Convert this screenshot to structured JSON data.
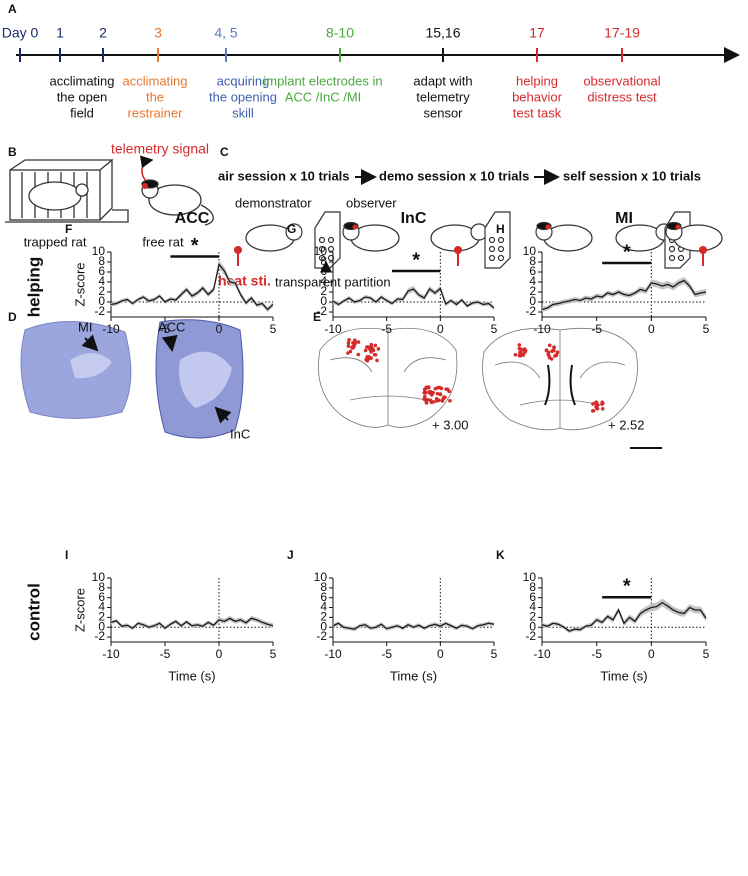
{
  "timeline": {
    "label": "A",
    "events": [
      {
        "day": "Day 0",
        "color": "#1b2a6b"
      },
      {
        "day": "1",
        "color": "#1b2a6b"
      },
      {
        "day": "2",
        "color": "#1b2a6b"
      },
      {
        "day": "3",
        "color": "#e8762c"
      },
      {
        "day": "4, 5",
        "color": "#5a7bbf"
      },
      {
        "day": "8-10",
        "color": "#4aa83f"
      },
      {
        "day": "15,16",
        "color": "#111111"
      },
      {
        "day": "17",
        "color": "#d42a2a"
      },
      {
        "day": "17-19",
        "color": "#d42a2a"
      }
    ],
    "captions": [
      {
        "lines": [
          "acclimating",
          "the open",
          "field"
        ],
        "color": "#111111"
      },
      {
        "lines": [
          "acclimating",
          "the",
          "restrainer"
        ],
        "color": "#e8762c"
      },
      {
        "lines": [
          "acquiring",
          "the opening",
          "skill"
        ],
        "color": "#3d5fb0"
      },
      {
        "lines": [
          "implant  electrodes in",
          "ACC /InC /MI"
        ],
        "color": "#4aa83f"
      },
      {
        "lines": [
          "adapt with",
          "telemetry",
          "sensor"
        ],
        "color": "#111111"
      },
      {
        "lines": [
          "helping",
          "behavior",
          "test task"
        ],
        "color": "#d42a2a"
      },
      {
        "lines": [
          "observational",
          "distress test"
        ],
        "color": "#d42a2a"
      }
    ]
  },
  "panel_b": {
    "label": "B",
    "signal": "telemetry signal",
    "trapped": "trapped rat",
    "free": "free rat"
  },
  "panel_c": {
    "label": "C",
    "sessions": [
      "air session x 10 trials",
      "demo session x 10 trials",
      "self session x 10 trials"
    ],
    "demonstrator": "demonstrator",
    "observer": "observer",
    "stimulus": "heat sti.",
    "partition": "transparent partition"
  },
  "panel_d": {
    "label": "D",
    "regions": [
      "MI",
      "ACC",
      "InC"
    ]
  },
  "panel_e": {
    "label": "E",
    "sections": [
      "+ 3.00",
      "+ 2.52"
    ]
  },
  "row_labels": [
    "helping",
    "control"
  ],
  "chart_data": [
    {
      "type": "line",
      "panel": "F",
      "title": "ACC",
      "ylabel": "Z-score",
      "x": [
        -10,
        -9.5,
        -9,
        -8.5,
        -8,
        -7.5,
        -7,
        -6.5,
        -6,
        -5.5,
        -5,
        -4.5,
        -4,
        -3.5,
        -3,
        -2.5,
        -2,
        -1.5,
        -1,
        -0.5,
        0,
        0.5,
        1,
        1.5,
        2,
        2.5,
        3,
        3.5,
        4,
        4.5,
        5
      ],
      "series": [
        {
          "color": "#1a1a1a",
          "band_color": "#c4c4c4",
          "values": [
            -0.5,
            -0.3,
            0.2,
            0.5,
            -0.3,
            0.5,
            1,
            0.2,
            0.5,
            1.2,
            0,
            0.6,
            0.4,
            1.5,
            2.5,
            1.2,
            1.8,
            2.8,
            1.5,
            2.5,
            7.5,
            6.2,
            4,
            3.8,
            1.5,
            -0.2,
            0.8,
            -0.6,
            -0.3,
            -1.5,
            -0.5
          ],
          "error": [
            0.4,
            0.4,
            0.4,
            0.4,
            0.4,
            0.4,
            0.4,
            0.4,
            0.4,
            0.4,
            0.4,
            0.4,
            0.4,
            0.5,
            0.5,
            0.5,
            0.5,
            0.5,
            0.5,
            0.5,
            0.8,
            0.8,
            0.6,
            0.6,
            0.5,
            0.5,
            0.5,
            0.5,
            0.5,
            0.5,
            0.5
          ]
        }
      ],
      "xlim": [
        -10,
        5
      ],
      "ylim": [
        -3,
        10
      ],
      "xticks": [
        -10,
        -5,
        0,
        5
      ],
      "yticks": [
        -2,
        0,
        2,
        4,
        6,
        8,
        10
      ],
      "ref_lines": {
        "x": 0,
        "y": 0
      },
      "significance": {
        "range": [
          -4.5,
          0
        ],
        "y": 9.1,
        "label": "*"
      }
    },
    {
      "type": "line",
      "panel": "G",
      "title": "InC",
      "x": [
        -10,
        -9.5,
        -9,
        -8.5,
        -8,
        -7.5,
        -7,
        -6.5,
        -6,
        -5.5,
        -5,
        -4.5,
        -4,
        -3.5,
        -3,
        -2.5,
        -2,
        -1.5,
        -1,
        -0.5,
        0,
        0.5,
        1,
        1.5,
        2,
        2.5,
        3,
        3.5,
        4,
        4.5,
        5
      ],
      "series": [
        {
          "color": "#1a1a1a",
          "band_color": "#c4c4c4",
          "values": [
            0.2,
            -0.5,
            0.2,
            0.8,
            0,
            0.3,
            1,
            0.8,
            0,
            1,
            0.3,
            -0.3,
            0.6,
            0.5,
            2.2,
            2.6,
            1.4,
            0.8,
            2.6,
            1.8,
            2.7,
            -0.4,
            0.3,
            -0.5,
            0.4,
            -0.8,
            -0.2,
            0,
            -0.5,
            -0.3,
            -1.2
          ],
          "error": [
            0.4,
            0.4,
            0.4,
            0.4,
            0.4,
            0.4,
            0.4,
            0.4,
            0.4,
            0.4,
            0.4,
            0.4,
            0.4,
            0.5,
            0.6,
            0.6,
            0.5,
            0.5,
            0.6,
            0.5,
            0.6,
            0.5,
            0.4,
            0.4,
            0.4,
            0.4,
            0.4,
            0.4,
            0.4,
            0.4,
            0.4
          ]
        }
      ],
      "xlim": [
        -10,
        5
      ],
      "ylim": [
        -3,
        10
      ],
      "xticks": [
        -10,
        -5,
        0,
        5
      ],
      "yticks": [
        -2,
        0,
        2,
        4,
        6,
        8,
        10
      ],
      "ref_lines": {
        "x": 0,
        "y": 0
      },
      "significance": {
        "range": [
          -4.5,
          0
        ],
        "y": 6.2,
        "label": "*"
      }
    },
    {
      "type": "line",
      "panel": "H",
      "title": "MI",
      "x": [
        -10,
        -9.5,
        -9,
        -8.5,
        -8,
        -7.5,
        -7,
        -6.5,
        -6,
        -5.5,
        -5,
        -4.5,
        -4,
        -3.5,
        -3,
        -2.5,
        -2,
        -1.5,
        -1,
        -0.5,
        0,
        0.5,
        1,
        1.5,
        2,
        2.5,
        3,
        3.5,
        4,
        4.5,
        5
      ],
      "series": [
        {
          "color": "#1a1a1a",
          "band_color": "#c4c4c4",
          "values": [
            -1.5,
            -1.2,
            -0.5,
            -0.3,
            0,
            0.2,
            0.5,
            0.3,
            0.8,
            0.6,
            1.2,
            1,
            1.8,
            1.5,
            2,
            1.5,
            1.3,
            1.8,
            2.5,
            2.2,
            3.8,
            3.6,
            3.2,
            3.5,
            3,
            3.8,
            4.3,
            3.2,
            1.5,
            1.8,
            2
          ],
          "error": [
            0.5,
            0.5,
            0.5,
            0.5,
            0.5,
            0.5,
            0.5,
            0.5,
            0.5,
            0.5,
            0.5,
            0.5,
            0.5,
            0.5,
            0.5,
            0.5,
            0.5,
            0.5,
            0.6,
            0.6,
            0.7,
            0.7,
            0.7,
            0.7,
            0.7,
            0.7,
            0.7,
            0.7,
            0.6,
            0.6,
            0.6
          ]
        }
      ],
      "xlim": [
        -10,
        5
      ],
      "ylim": [
        -3,
        10
      ],
      "xticks": [
        -10,
        -5,
        0,
        5
      ],
      "yticks": [
        -2,
        0,
        2,
        4,
        6,
        8,
        10
      ],
      "ref_lines": {
        "x": 0,
        "y": 0
      },
      "significance": {
        "range": [
          -4.5,
          0
        ],
        "y": 7.8,
        "label": "*"
      }
    },
    {
      "type": "line",
      "panel": "I",
      "ylabel": "Z-score",
      "xlabel": "Time (s)",
      "x": [
        -10,
        -9.5,
        -9,
        -8.5,
        -8,
        -7.5,
        -7,
        -6.5,
        -6,
        -5.5,
        -5,
        -4.5,
        -4,
        -3.5,
        -3,
        -2.5,
        -2,
        -1.5,
        -1,
        -0.5,
        0,
        0.5,
        1,
        1.5,
        2,
        2.5,
        3,
        3.5,
        4,
        4.5,
        5
      ],
      "series": [
        {
          "color": "#1a1a1a",
          "band_color": "#c4c4c4",
          "values": [
            1,
            1.3,
            0.2,
            0.4,
            -0.2,
            0.8,
            0.5,
            0,
            0.3,
            0.8,
            -0.2,
            0.6,
            1.2,
            0.3,
            1.1,
            0.3,
            0.5,
            0.2,
            1,
            0.4,
            1.5,
            1.2,
            1.8,
            1.2,
            1.5,
            0.9,
            1.8,
            1.5,
            1,
            0.6,
            0.3
          ],
          "error": [
            0.4,
            0.4,
            0.4,
            0.4,
            0.4,
            0.4,
            0.4,
            0.4,
            0.4,
            0.4,
            0.4,
            0.4,
            0.4,
            0.4,
            0.4,
            0.4,
            0.4,
            0.4,
            0.4,
            0.4,
            0.5,
            0.5,
            0.5,
            0.5,
            0.5,
            0.5,
            0.5,
            0.5,
            0.5,
            0.5,
            0.5
          ]
        }
      ],
      "xlim": [
        -10,
        5
      ],
      "ylim": [
        -3,
        10
      ],
      "xticks": [
        -10,
        -5,
        0,
        5
      ],
      "yticks": [
        -2,
        0,
        2,
        4,
        6,
        8,
        10
      ],
      "ref_lines": {
        "x": 0,
        "y": 0
      }
    },
    {
      "type": "line",
      "panel": "J",
      "xlabel": "Time (s)",
      "x": [
        -10,
        -9.5,
        -9,
        -8.5,
        -8,
        -7.5,
        -7,
        -6.5,
        -6,
        -5.5,
        -5,
        -4.5,
        -4,
        -3.5,
        -3,
        -2.5,
        -2,
        -1.5,
        -1,
        -0.5,
        0,
        0.5,
        1,
        1.5,
        2,
        2.5,
        3,
        3.5,
        4,
        4.5,
        5
      ],
      "series": [
        {
          "color": "#1a1a1a",
          "band_color": "#c4c4c4",
          "values": [
            0.3,
            0.8,
            0,
            -0.2,
            -0.4,
            0.3,
            0.5,
            -0.2,
            0,
            0.6,
            -0.3,
            0,
            0.3,
            -0.2,
            0.5,
            0,
            0.4,
            -0.2,
            0.3,
            0.6,
            0.2,
            0.8,
            0.3,
            -0.2,
            0.4,
            0.2,
            -0.3,
            0.3,
            0.5,
            0.8,
            0.6
          ],
          "error": [
            0.4,
            0.4,
            0.4,
            0.4,
            0.4,
            0.4,
            0.4,
            0.4,
            0.4,
            0.4,
            0.4,
            0.4,
            0.4,
            0.4,
            0.4,
            0.4,
            0.4,
            0.4,
            0.4,
            0.4,
            0.4,
            0.4,
            0.4,
            0.4,
            0.4,
            0.4,
            0.4,
            0.4,
            0.4,
            0.4,
            0.4
          ]
        }
      ],
      "xlim": [
        -10,
        5
      ],
      "ylim": [
        -3,
        10
      ],
      "xticks": [
        -10,
        -5,
        0,
        5
      ],
      "yticks": [
        -2,
        0,
        2,
        4,
        6,
        8,
        10
      ],
      "ref_lines": {
        "x": 0,
        "y": 0
      }
    },
    {
      "type": "line",
      "panel": "K",
      "xlabel": "Time (s)",
      "x": [
        -10,
        -9.5,
        -9,
        -8.5,
        -8,
        -7.5,
        -7,
        -6.5,
        -6,
        -5.5,
        -5,
        -4.5,
        -4,
        -3.5,
        -3,
        -2.5,
        -2,
        -1.5,
        -1,
        -0.5,
        0,
        0.5,
        1,
        1.5,
        2,
        2.5,
        3,
        3.5,
        4,
        4.5,
        5
      ],
      "series": [
        {
          "color": "#1a1a1a",
          "band_color": "#c4c4c4",
          "values": [
            0.5,
            0.2,
            0.8,
            0.6,
            0,
            -0.8,
            -0.4,
            -0.5,
            0.2,
            0.4,
            1.5,
            1,
            2.2,
            1.5,
            3.5,
            0.8,
            2,
            1.2,
            2.8,
            3.5,
            4,
            4.2,
            5,
            4.3,
            3.5,
            3,
            2.8,
            4,
            3.5,
            3.5,
            1.8
          ],
          "error": [
            0.4,
            0.4,
            0.4,
            0.4,
            0.4,
            0.4,
            0.4,
            0.4,
            0.4,
            0.5,
            0.5,
            0.5,
            0.5,
            0.6,
            0.6,
            0.6,
            0.6,
            0.6,
            0.7,
            0.7,
            0.8,
            0.8,
            0.8,
            0.8,
            0.7,
            0.7,
            0.7,
            0.7,
            0.7,
            0.7,
            0.7
          ]
        }
      ],
      "xlim": [
        -10,
        5
      ],
      "ylim": [
        -3,
        10
      ],
      "xticks": [
        -10,
        -5,
        0,
        5
      ],
      "yticks": [
        -2,
        0,
        2,
        4,
        6,
        8,
        10
      ],
      "ref_lines": {
        "x": 0,
        "y": 0
      },
      "significance": {
        "range": [
          -4.5,
          0
        ],
        "y": 6.1,
        "label": "*"
      }
    }
  ]
}
